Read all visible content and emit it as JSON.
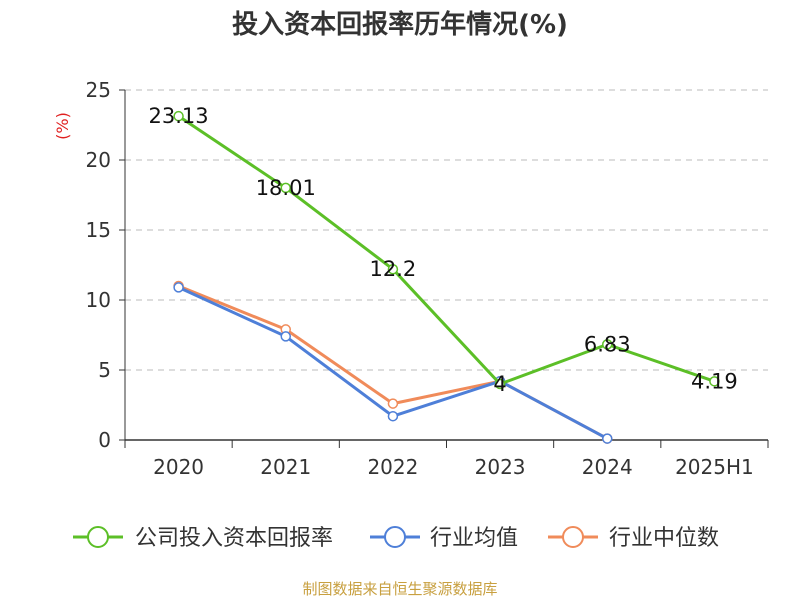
{
  "title": "投入资本回报率历年情况(%)",
  "source": "制图数据来自恒生聚源数据库",
  "chart_data": {
    "type": "line",
    "title": "投入资本回报率历年情况(%)",
    "ylabel": "(%)",
    "xlabel": "",
    "categories": [
      "2020",
      "2021",
      "2022",
      "2023",
      "2024",
      "2025H1"
    ],
    "ylim": [
      0,
      25
    ],
    "yticks": [
      0,
      5,
      10,
      15,
      20,
      25
    ],
    "grid": true,
    "legend_position": "bottom",
    "series": [
      {
        "name": "公司投入资本回报率",
        "color": "#5cbf27",
        "values": [
          23.13,
          18.01,
          12.2,
          4,
          6.83,
          4.19
        ],
        "labels": [
          "23.13",
          "18.01",
          "12.2",
          "4",
          "6.83",
          "4.19"
        ]
      },
      {
        "name": "行业均值",
        "color": "#4e7fd8",
        "values": [
          10.9,
          7.4,
          1.7,
          4.2,
          0.1,
          null
        ]
      },
      {
        "name": "行业中位数",
        "color": "#f08b5a",
        "values": [
          11.0,
          7.9,
          2.6,
          4.2,
          0.1,
          null
        ]
      }
    ]
  }
}
